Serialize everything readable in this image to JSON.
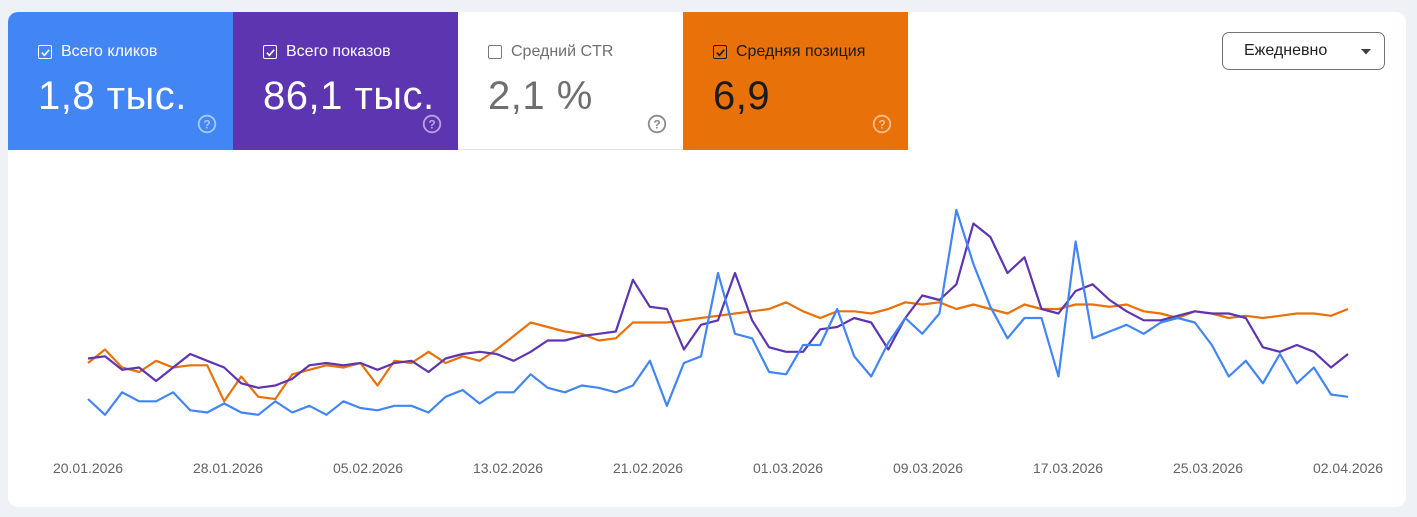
{
  "metrics": [
    {
      "label": "Всего кликов",
      "value": "1,8 тыс.",
      "checked": true,
      "color": "#4285f4",
      "help_icon": "question-circle-icon"
    },
    {
      "label": "Всего показов",
      "value": "86,1 тыс.",
      "checked": true,
      "color": "#5e35b1",
      "help_icon": "question-circle-icon"
    },
    {
      "label": "Средний CTR",
      "value": "2,1 %",
      "checked": false,
      "color": "#ffffff",
      "help_icon": "question-circle-icon"
    },
    {
      "label": "Средняя позиция",
      "value": "6,9",
      "checked": true,
      "color": "#e8710a",
      "help_icon": "question-circle-icon"
    }
  ],
  "period_select": {
    "value": "Ежедневно",
    "icon": "caret-down-icon"
  },
  "chart_data": {
    "type": "line",
    "x_labels": [
      "20.01.2026",
      "28.01.2026",
      "05.02.2026",
      "13.02.2026",
      "21.02.2026",
      "01.03.2026",
      "09.03.2026",
      "17.03.2026",
      "25.03.2026",
      "02.04.2026"
    ],
    "x_start": "2026-01-20",
    "x_end": "2026-04-02",
    "y_axis_visible": false,
    "grid": false,
    "series": [
      {
        "color": "#4285f4",
        "values": [
          16,
          9,
          19,
          15,
          15,
          19,
          11,
          10,
          14,
          10,
          9,
          15,
          10,
          13,
          9,
          15,
          12,
          11,
          13,
          13,
          10,
          17,
          20,
          14,
          19,
          19,
          27,
          21,
          19,
          22,
          21,
          19,
          22,
          33,
          13,
          32,
          35,
          72,
          45,
          43,
          28,
          27,
          40,
          40,
          56,
          35,
          26,
          41,
          52,
          45,
          54,
          100,
          76,
          57,
          43,
          52,
          52,
          26,
          86,
          43,
          46,
          49,
          45,
          50,
          52,
          50,
          40,
          26,
          33,
          23,
          36,
          23,
          30,
          18,
          17
        ]
      },
      {
        "color": "#5e35b1",
        "values": [
          34,
          35,
          29,
          30,
          24,
          30,
          36,
          33,
          30,
          23,
          21,
          22,
          25,
          31,
          32,
          31,
          32,
          29,
          32,
          33,
          28,
          34,
          36,
          37,
          36,
          33,
          37,
          42,
          42,
          44,
          45,
          46,
          69,
          57,
          56,
          38,
          49,
          51,
          72,
          51,
          39,
          37,
          37,
          47,
          48,
          52,
          50,
          38,
          52,
          62,
          60,
          67,
          94,
          88,
          72,
          79,
          56,
          54,
          64,
          67,
          60,
          55,
          51,
          51,
          53,
          55,
          54,
          54,
          52,
          39,
          37,
          40,
          37,
          30,
          36
        ]
      },
      {
        "color": "#e8710a",
        "values": [
          32,
          38,
          30,
          28,
          33,
          30,
          31,
          31,
          15,
          26,
          17,
          16,
          27,
          29,
          31,
          30,
          32,
          22,
          33,
          32,
          37,
          32,
          35,
          33,
          38,
          44,
          50,
          48,
          46,
          45,
          42,
          43,
          50,
          50,
          50,
          51,
          52,
          53,
          54,
          55,
          56,
          59,
          55,
          52,
          55,
          55,
          54,
          56,
          59,
          58,
          59,
          56,
          58,
          56,
          54,
          58,
          56,
          56,
          58,
          58,
          57,
          58,
          55,
          54,
          52,
          55,
          54,
          52,
          53,
          52,
          53,
          54,
          54,
          53,
          56
        ]
      }
    ]
  }
}
